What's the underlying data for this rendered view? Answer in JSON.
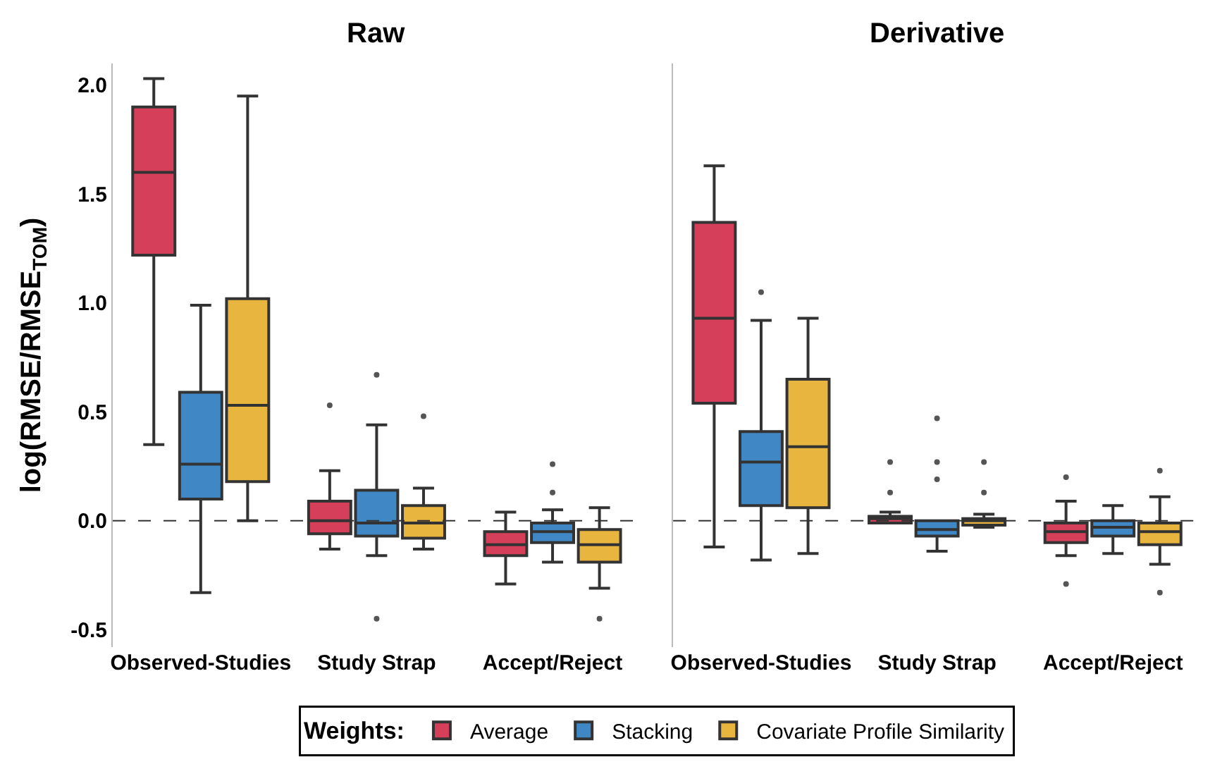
{
  "chart_data": [
    {
      "type": "box",
      "title": "Raw",
      "ylabel": "log(RMSE/RMSE$_{TOM}$)",
      "categories": [
        "Observed-Studies",
        "Study Strap",
        "Accept/Reject"
      ],
      "ylim": [
        -0.58,
        2.1
      ],
      "yticks": [
        {
          "value": -0.5,
          "label": "-0.5"
        },
        {
          "value": 0,
          "label": "0.0"
        },
        0.5,
        {
          "value": 1,
          "label": "1.0"
        },
        1.5,
        {
          "value": 2,
          "label": "2.0"
        }
      ],
      "grid": false,
      "legend": "bottom",
      "legend_title": "Weights:",
      "ref_lines": [
        {
          "axis": "y",
          "value": 0,
          "line_style": "dashed",
          "color": "#333333"
        }
      ],
      "series": [
        {
          "name": "Average",
          "color": "#d63f5a",
          "boxes": [
            {
              "low": 0.35,
              "q1": 1.22,
              "median": 1.6,
              "q3": 1.9,
              "high": 2.03
            },
            {
              "low": -0.13,
              "q1": -0.06,
              "median": 0.0,
              "q3": 0.09,
              "high": 0.23,
              "outliers": [
                0.53
              ]
            },
            {
              "low": -0.29,
              "q1": -0.16,
              "median": -0.11,
              "q3": -0.05,
              "high": 0.04
            }
          ]
        },
        {
          "name": "Stacking",
          "color": "#3f88c5",
          "boxes": [
            {
              "low": -0.33,
              "q1": 0.1,
              "median": 0.26,
              "q3": 0.59,
              "high": 0.99
            },
            {
              "low": -0.16,
              "q1": -0.07,
              "median": -0.01,
              "q3": 0.14,
              "high": 0.44,
              "outliers": [
                0.67,
                -0.45
              ]
            },
            {
              "low": -0.19,
              "q1": -0.1,
              "median": -0.05,
              "q3": -0.01,
              "high": 0.05,
              "outliers": [
                0.26,
                0.13
              ]
            }
          ]
        },
        {
          "name": "Covariate Profile Similarity",
          "color": "#e8b53f",
          "boxes": [
            {
              "low": 0.0,
              "q1": 0.18,
              "median": 0.53,
              "q3": 1.02,
              "high": 1.95
            },
            {
              "low": -0.13,
              "q1": -0.08,
              "median": -0.01,
              "q3": 0.07,
              "high": 0.15,
              "outliers": [
                0.48
              ]
            },
            {
              "low": -0.31,
              "q1": -0.19,
              "median": -0.11,
              "q3": -0.04,
              "high": 0.06,
              "outliers": [
                -0.45
              ]
            }
          ]
        }
      ]
    },
    {
      "type": "box",
      "title": "Derivative",
      "categories": [
        "Observed-Studies",
        "Study Strap",
        "Accept/Reject"
      ],
      "ylim": [
        -0.58,
        2.1
      ],
      "tick_labels": "x",
      "grid": false,
      "ref_lines": [
        {
          "axis": "y",
          "value": 0,
          "line_style": "dashed",
          "color": "#333333"
        }
      ],
      "series": [
        {
          "color": "#d63f5a",
          "boxes": [
            {
              "low": -0.12,
              "q1": 0.54,
              "median": 0.93,
              "q3": 1.37,
              "high": 1.63
            },
            {
              "low": -0.01,
              "q1": -0.01,
              "median": 0.01,
              "q3": 0.02,
              "high": 0.04,
              "outliers": [
                0.27,
                0.13
              ]
            },
            {
              "low": -0.16,
              "q1": -0.1,
              "median": -0.05,
              "q3": -0.01,
              "high": 0.09,
              "outliers": [
                0.2,
                -0.29
              ]
            }
          ]
        },
        {
          "color": "#3f88c5",
          "boxes": [
            {
              "low": -0.18,
              "q1": 0.07,
              "median": 0.27,
              "q3": 0.41,
              "high": 0.92,
              "outliers": [
                1.05
              ]
            },
            {
              "low": -0.14,
              "q1": -0.07,
              "median": -0.04,
              "q3": 0.0,
              "high": 0.0,
              "outliers": [
                0.47,
                0.27,
                0.19
              ]
            },
            {
              "low": -0.15,
              "q1": -0.07,
              "median": -0.03,
              "q3": 0.0,
              "high": 0.07
            }
          ]
        },
        {
          "color": "#e8b53f",
          "boxes": [
            {
              "low": -0.15,
              "q1": 0.06,
              "median": 0.34,
              "q3": 0.65,
              "high": 0.93
            },
            {
              "low": -0.03,
              "q1": -0.02,
              "median": 0.0,
              "q3": 0.01,
              "high": 0.03,
              "outliers": [
                0.27,
                0.13
              ]
            },
            {
              "low": -0.2,
              "q1": -0.11,
              "median": -0.05,
              "q3": -0.01,
              "high": 0.11,
              "outliers": [
                0.23,
                -0.33
              ]
            }
          ]
        }
      ]
    }
  ]
}
